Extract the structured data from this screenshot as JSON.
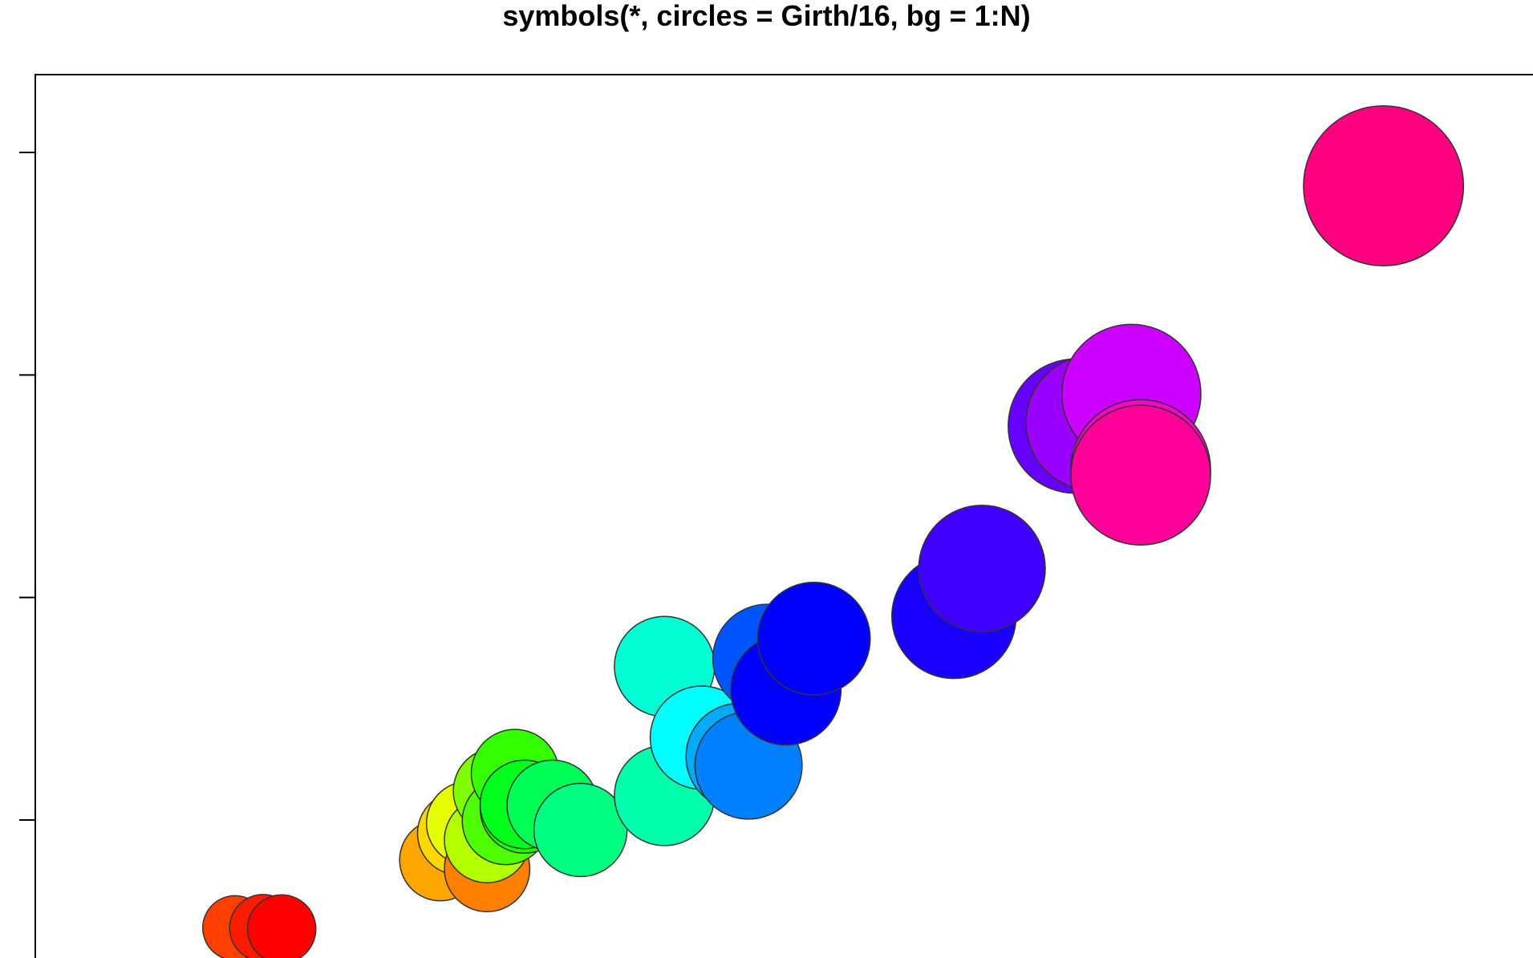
{
  "title": "symbols(*, circles = Girth/16, bg = 1:N)",
  "chart_data": {
    "type": "scatter",
    "title": "symbols(*, circles = Girth/16, bg = 1:N)",
    "xlabel": "",
    "ylabel": "",
    "xlim": [
      8.0,
      20.5
    ],
    "ylim": [
      10.5,
      82
    ],
    "y_ticks": [
      20,
      40,
      60,
      80
    ],
    "grid": false,
    "size_variable": "Girth",
    "points": [
      {
        "x": 8.3,
        "y": 10.3,
        "r": 8.3,
        "color": "#ff4000"
      },
      {
        "x": 8.6,
        "y": 10.3,
        "r": 8.6,
        "color": "#ff1a00"
      },
      {
        "x": 8.8,
        "y": 10.2,
        "r": 8.8,
        "color": "#ff0000"
      },
      {
        "x": 10.5,
        "y": 16.4,
        "r": 10.5,
        "color": "#ffa500"
      },
      {
        "x": 10.7,
        "y": 18.8,
        "r": 10.7,
        "color": "#ffd700"
      },
      {
        "x": 10.8,
        "y": 19.7,
        "r": 10.8,
        "color": "#e6ff00"
      },
      {
        "x": 11.0,
        "y": 15.6,
        "r": 11.0,
        "color": "#ff7f00"
      },
      {
        "x": 11.0,
        "y": 18.2,
        "r": 11.0,
        "color": "#b3ff00"
      },
      {
        "x": 11.1,
        "y": 22.6,
        "r": 11.1,
        "color": "#80ff00"
      },
      {
        "x": 11.2,
        "y": 19.9,
        "r": 11.2,
        "color": "#4dff00"
      },
      {
        "x": 11.3,
        "y": 24.2,
        "r": 11.3,
        "color": "#33ff00"
      },
      {
        "x": 11.4,
        "y": 21.0,
        "r": 11.4,
        "color": "#1aff00"
      },
      {
        "x": 11.4,
        "y": 21.4,
        "r": 11.4,
        "color": "#00ff1a"
      },
      {
        "x": 11.7,
        "y": 21.3,
        "r": 11.7,
        "color": "#00ff55"
      },
      {
        "x": 12.0,
        "y": 19.1,
        "r": 12.0,
        "color": "#00ff80"
      },
      {
        "x": 12.9,
        "y": 22.2,
        "r": 12.9,
        "color": "#00ffaa"
      },
      {
        "x": 12.9,
        "y": 33.8,
        "r": 12.9,
        "color": "#00ffd5"
      },
      {
        "x": 13.3,
        "y": 27.4,
        "r": 13.3,
        "color": "#00ffff"
      },
      {
        "x": 13.7,
        "y": 25.7,
        "r": 13.7,
        "color": "#00aaff"
      },
      {
        "x": 13.8,
        "y": 24.9,
        "r": 13.8,
        "color": "#0080ff"
      },
      {
        "x": 14.0,
        "y": 34.5,
        "r": 14.0,
        "color": "#0055ff"
      },
      {
        "x": 14.2,
        "y": 31.7,
        "r": 14.2,
        "color": "#0000ff"
      },
      {
        "x": 14.5,
        "y": 36.3,
        "r": 14.5,
        "color": "#0000ff"
      },
      {
        "x": 16.0,
        "y": 38.3,
        "r": 16.0,
        "color": "#1a00ff"
      },
      {
        "x": 16.3,
        "y": 42.6,
        "r": 16.3,
        "color": "#4000ff"
      },
      {
        "x": 17.3,
        "y": 55.4,
        "r": 17.3,
        "color": "#6600ff"
      },
      {
        "x": 17.5,
        "y": 55.7,
        "r": 17.5,
        "color": "#9900ff"
      },
      {
        "x": 17.9,
        "y": 58.3,
        "r": 17.9,
        "color": "#cc00ff"
      },
      {
        "x": 18.0,
        "y": 51.5,
        "r": 18.0,
        "color": "#ff00cc"
      },
      {
        "x": 18.0,
        "y": 51.0,
        "r": 18.0,
        "color": "#ff0099"
      },
      {
        "x": 20.6,
        "y": 77.0,
        "r": 20.6,
        "color": "#ff0080"
      }
    ]
  }
}
